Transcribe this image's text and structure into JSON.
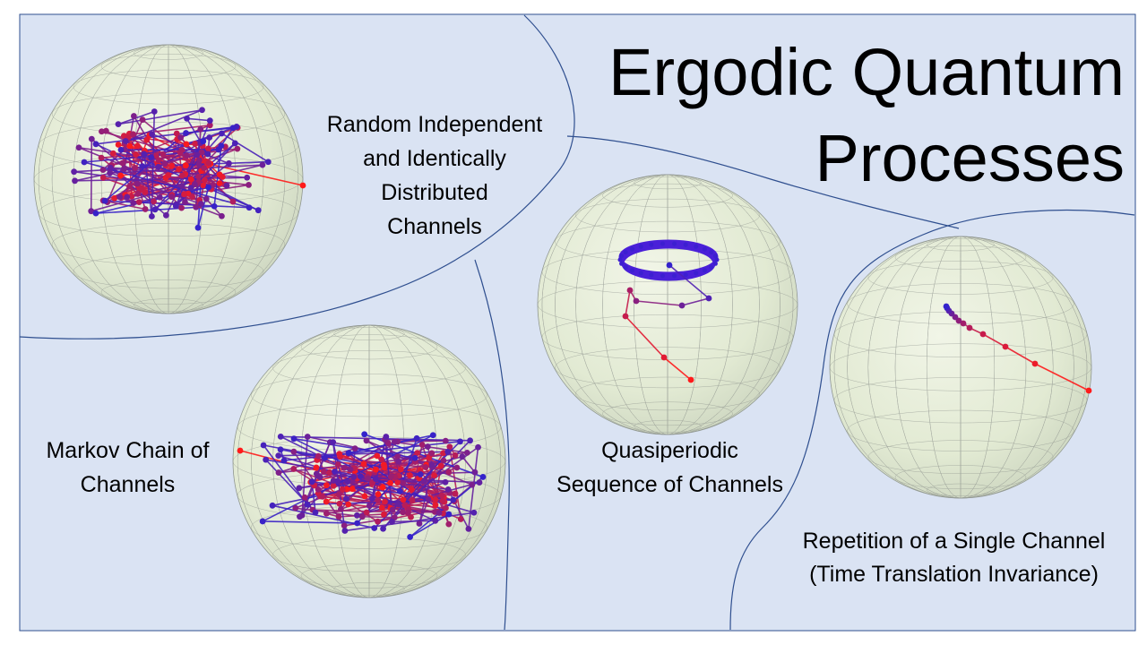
{
  "title": {
    "line1": "Ergodic Quantum",
    "line2": "Processes"
  },
  "regions": {
    "iid": {
      "label_lines": [
        "Random Independent",
        "and Identically",
        "Distributed",
        "Channels"
      ]
    },
    "markov": {
      "label_lines": [
        "Markov Chain of",
        "Channels"
      ]
    },
    "quasiperiodic": {
      "label_lines": [
        "Quasiperiodic",
        "Sequence of Channels"
      ]
    },
    "repetition": {
      "label_lines": [
        "Repetition of a Single Channel",
        "(Time Translation Invariance)"
      ]
    }
  },
  "colors": {
    "background": "#dae3f3",
    "border": "#2f4f8f",
    "sphere_fill": "#e3ecd6",
    "grid": "#8a8f8a",
    "trajectory_start": "#ff1a1a",
    "trajectory_end": "#3322cc"
  }
}
